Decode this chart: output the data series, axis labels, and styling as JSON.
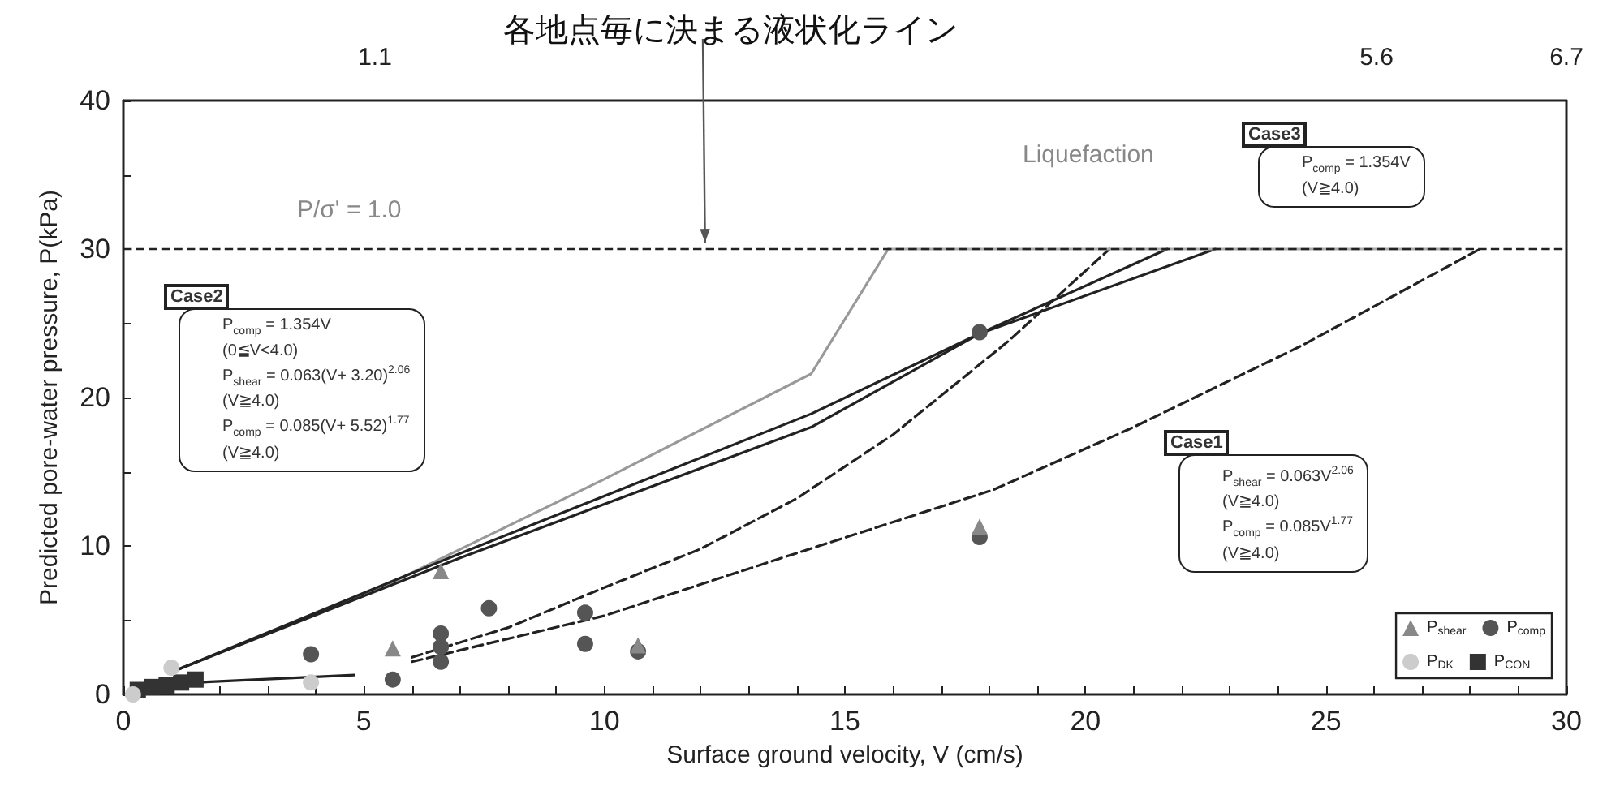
{
  "chart_data": {
    "type": "scatter",
    "xlabel": "Surface ground velocity, V (cm/s)",
    "ylabel": "Predicted pore-water pressure, P(kPa)",
    "xlim": [
      0,
      30
    ],
    "ylim": [
      0,
      40
    ],
    "xticks": [
      0,
      {
        "value": 1,
        "label": null
      },
      {
        "value": 2,
        "label": null
      },
      {
        "value": 3,
        "label": null
      },
      {
        "value": 4,
        "label": null
      },
      5,
      {
        "value": 6,
        "label": null
      },
      {
        "value": 7,
        "label": null
      },
      {
        "value": 8,
        "label": null
      },
      {
        "value": 9,
        "label": null
      },
      10,
      {
        "value": 11,
        "label": null
      },
      {
        "value": 12,
        "label": null
      },
      {
        "value": 13,
        "label": null
      },
      {
        "value": 14,
        "label": null
      },
      15,
      {
        "value": 16,
        "label": null
      },
      {
        "value": 17,
        "label": null
      },
      {
        "value": 18,
        "label": null
      },
      {
        "value": 19,
        "label": null
      },
      20,
      {
        "value": 21,
        "label": null
      },
      {
        "value": 22,
        "label": null
      },
      {
        "value": 23,
        "label": null
      },
      {
        "value": 24,
        "label": null
      },
      25,
      {
        "value": 26,
        "label": null
      },
      {
        "value": 27,
        "label": null
      },
      {
        "value": 28,
        "label": null
      },
      {
        "value": 29,
        "label": null
      },
      30
    ],
    "yticks": [
      0,
      {
        "value": 5,
        "label": null
      },
      10,
      {
        "value": 15,
        "label": null
      },
      20,
      {
        "value": 25,
        "label": null
      },
      30,
      {
        "value": 35,
        "label": null
      },
      40
    ],
    "grid": false,
    "legend": "bottom right",
    "ref_lines": [
      {
        "axis": "y",
        "value": 30,
        "line_style": "dashed",
        "color": "#222222"
      }
    ],
    "series": [
      {
        "type": "line",
        "color": "#999999",
        "marker": "none",
        "line_style": "solid",
        "x": [
          1,
          5.3,
          10,
          14.3,
          15.9
        ],
        "values": [
          1.5,
          7.1,
          14.5,
          21.6,
          30
        ]
      },
      {
        "type": "line",
        "color": "#222222",
        "marker": "none",
        "line_style": "solid",
        "x": [
          1,
          7,
          14.3,
          17.8,
          21.7
        ],
        "values": [
          1.5,
          9.5,
          18.9,
          24.3,
          30
        ]
      },
      {
        "type": "line",
        "color": "#222222",
        "marker": "none",
        "line_style": "solid",
        "x": [
          1,
          7,
          14.3,
          17.8,
          22.7
        ],
        "values": [
          1.5,
          9.2,
          18,
          24.3,
          30
        ]
      },
      {
        "type": "line",
        "color": "#222222",
        "marker": "none",
        "line_style": "solid",
        "x": [
          0.8,
          4.8
        ],
        "values": [
          0.7,
          1.3
        ]
      },
      {
        "type": "line",
        "color": "#222222",
        "marker": "none",
        "line_style": "dashed",
        "x": [
          6,
          8,
          10,
          12,
          14,
          16,
          18.4,
          20.5
        ],
        "values": [
          2.5,
          4.5,
          7.2,
          9.8,
          13.2,
          17.5,
          23.8,
          30
        ]
      },
      {
        "type": "line",
        "color": "#222222",
        "marker": "none",
        "line_style": "dashed",
        "x": [
          6,
          10,
          13.6,
          18.1,
          21,
          24.5,
          28.2
        ],
        "values": [
          2.2,
          5.3,
          9.1,
          13.8,
          18,
          23.5,
          30
        ]
      },
      {
        "type": "line",
        "color": "#aaaaaa",
        "marker": "none",
        "line_style": "solid",
        "x": [
          15.9,
          27.8
        ],
        "values": [
          30,
          30
        ]
      },
      {
        "name": "P$_{shear}$",
        "color": "#888888",
        "marker": "triangle",
        "x": [
          6.6,
          5.6,
          17.8,
          10.7
        ],
        "values": [
          8.3,
          3.1,
          11.3,
          3.3
        ]
      },
      {
        "name": "P$_{comp}$",
        "color": "#555555",
        "marker": "circle",
        "x": [
          7.6,
          9.6,
          9.6,
          10.7,
          6.6,
          6.6,
          6.6,
          5.6,
          17.8,
          17.8,
          3.9
        ],
        "values": [
          5.8,
          5.5,
          3.4,
          2.9,
          4.1,
          3.2,
          2.2,
          1,
          10.6,
          24.4,
          2.7
        ]
      },
      {
        "name": "P$_{DK}$",
        "color": "#cccccc",
        "marker": "circle",
        "x": [
          0.2,
          1,
          3.9
        ],
        "values": [
          0,
          1.8,
          0.8
        ]
      },
      {
        "name": "P$_{CON}$",
        "color": "#333333",
        "marker": "square",
        "x": [
          0.3,
          0.6,
          0.9,
          1.2,
          1.5
        ],
        "values": [
          0.3,
          0.5,
          0.6,
          0.8,
          1
        ]
      }
    ],
    "annotations": [
      "Case2",
      "P$_{comp}$ = 1.354V\n(0≦V<4.0)\nP$_{shear}$ = 0.063(V+ 3.20)$^{2.06}$\n(V≧4.0)\nP$_{comp}$ = 0.085(V+ 5.52)$^{1.77}$\n(V≧4.0)",
      "Case1",
      "P$_{shear}$ = 0.063V$^{2.06}$\n(V≧4.0)\nP$_{comp}$ = 0.085V$^{1.77}$\n(V≧4.0)",
      "Case3",
      "P$_{comp}$ = 1.354V\n(V≧4.0)",
      "Liquefaction",
      "P/σ' = 1.0",
      "1.1",
      "5.6",
      "6.7",
      {
        "text": "各地点毎に決まる液状化ライン",
        "x": 12.1,
        "y": 30
      }
    ]
  }
}
